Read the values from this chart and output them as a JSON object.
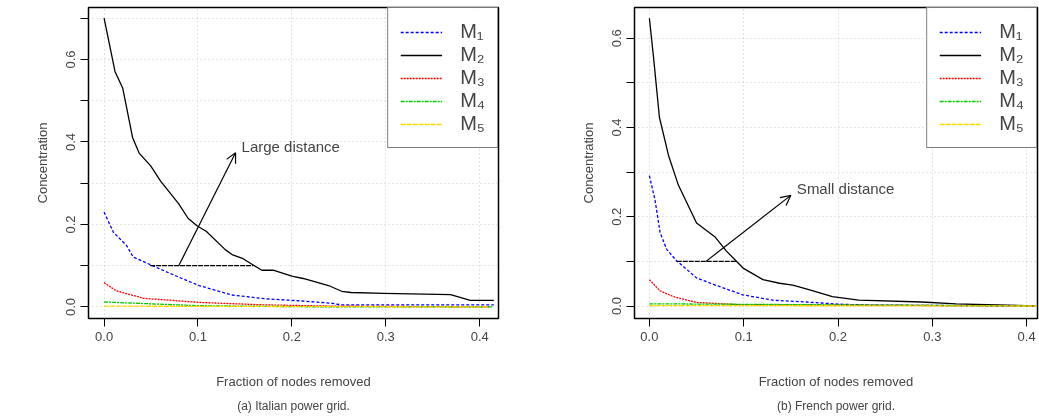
{
  "chart_data": [
    {
      "type": "line",
      "title": "(a) Italian power grid.",
      "xlabel": "Fraction of nodes removed",
      "ylabel": "Concentration",
      "xlim": [
        -0.0166,
        0.42
      ],
      "ylim": [
        -0.028,
        0.726
      ],
      "xticks": [
        {
          "value": 0,
          "label": "0.0"
        },
        0.1,
        0.2,
        0.3,
        0.4
      ],
      "yticks": [
        {
          "value": 0,
          "label": "0.0"
        },
        {
          "value": 0.1,
          "label": null
        },
        0.2,
        {
          "value": 0.3,
          "label": null
        },
        0.4,
        {
          "value": 0.5,
          "label": null
        },
        0.6,
        {
          "value": 0.7,
          "label": null
        }
      ],
      "grid": true,
      "legend": "top right",
      "annotations": [
        "Large distance"
      ],
      "series": [
        {
          "name": "M₁",
          "color": "#0000ff",
          "line_style": "dashed",
          "x": [
            0,
            0.0099,
            0.0239,
            0.031,
            0.0486,
            0.0767,
            0.101,
            0.136,
            0.171,
            0.207,
            0.242,
            0.253,
            0.415
          ],
          "values": [
            0.23,
            0.181,
            0.149,
            0.121,
            0.103,
            0.075,
            0.052,
            0.029,
            0.02,
            0.015,
            0.009,
            0.005,
            0.005
          ]
        },
        {
          "name": "M₂",
          "color": "#000000",
          "line_style": "solid",
          "x": [
            0,
            0.0116,
            0.0199,
            0.0303,
            0.0373,
            0.0496,
            0.0602,
            0.0795,
            0.0894,
            0.0989,
            0.109,
            0.129,
            0.137,
            0.148,
            0.168,
            0.18,
            0.2,
            0.212,
            0.239,
            0.253,
            0.263,
            0.298,
            0.369,
            0.39,
            0.415
          ],
          "values": [
            0.7,
            0.571,
            0.53,
            0.411,
            0.373,
            0.342,
            0.305,
            0.25,
            0.215,
            0.197,
            0.183,
            0.139,
            0.126,
            0.117,
            0.089,
            0.089,
            0.075,
            0.069,
            0.052,
            0.038,
            0.035,
            0.033,
            0.03,
            0.016,
            0.016
          ]
        },
        {
          "name": "M₃",
          "color": "#ff0000",
          "line_style": "dotted",
          "x": [
            0,
            0.013,
            0.042,
            0.101,
            0.171,
            0.242,
            0.41
          ],
          "values": [
            0.059,
            0.039,
            0.021,
            0.011,
            0.005,
            0.002,
            0
          ]
        },
        {
          "name": "M₄",
          "color": "#00cd00",
          "line_style": "dashdot",
          "x": [
            0,
            0.101,
            0.24,
            0.414
          ],
          "values": [
            0.012,
            0.003,
            0,
            0
          ]
        },
        {
          "name": "M₅",
          "color": "#ffd700",
          "line_style": "longdash",
          "x": [
            0,
            0.409
          ],
          "values": [
            0.002,
            0
          ]
        },
        {
          "color": "#000000",
          "line_style": "longdash",
          "x": [
            0.049,
            0.159
          ],
          "values": [
            0.1,
            0.1
          ]
        },
        {
          "color": "#000000",
          "line_style": "solid",
          "x": [
            0.0795,
            0.14
          ],
          "values": [
            0.1,
            0.374
          ]
        }
      ]
    },
    {
      "type": "line",
      "title": "(b) French power grid.",
      "xlabel": "Fraction of nodes removed",
      "ylabel": "Concentration",
      "xlim": [
        -0.0158,
        0.4115
      ],
      "ylim": [
        -0.028,
        0.669
      ],
      "xticks": [
        {
          "value": 0,
          "label": "0.0"
        },
        0.1,
        0.2,
        0.3,
        0.4
      ],
      "yticks": [
        {
          "value": 0,
          "label": "0.0"
        },
        {
          "value": 0.1,
          "label": null
        },
        0.2,
        {
          "value": 0.3,
          "label": null
        },
        0.4,
        {
          "value": 0.5,
          "label": null
        },
        0.6
      ],
      "grid": true,
      "legend": "top right",
      "annotations": [
        "Small distance"
      ],
      "series": [
        {
          "name": "M₁",
          "color": "#0000ff",
          "line_style": "dashed",
          "x": [
            0,
            0.006,
            0.0113,
            0.0183,
            0.029,
            0.05,
            0.071,
            0.099,
            0.131,
            0.166,
            0.201,
            0.237,
            0.411
          ],
          "values": [
            0.292,
            0.237,
            0.165,
            0.127,
            0.101,
            0.063,
            0.046,
            0.025,
            0.013,
            0.009,
            0.004,
            0.002,
            0
          ]
        },
        {
          "name": "M₂",
          "color": "#000000",
          "line_style": "solid",
          "x": [
            0,
            0.0043,
            0.0106,
            0.0202,
            0.0307,
            0.05,
            0.07,
            0.0817,
            0.0993,
            0.1204,
            0.138,
            0.152,
            0.17,
            0.194,
            0.222,
            0.289,
            0.325,
            0.411
          ],
          "values": [
            0.645,
            0.559,
            0.423,
            0.338,
            0.271,
            0.186,
            0.154,
            0.123,
            0.085,
            0.059,
            0.051,
            0.047,
            0.036,
            0.021,
            0.013,
            0.009,
            0.005,
            0
          ]
        },
        {
          "name": "M₃",
          "color": "#ff0000",
          "line_style": "dotted",
          "x": [
            0,
            0.0113,
            0.0254,
            0.05,
            0.096,
            0.411
          ],
          "values": [
            0.059,
            0.034,
            0.021,
            0.008,
            0.003,
            0
          ]
        },
        {
          "name": "M₄",
          "color": "#00cd00",
          "line_style": "dashdot",
          "x": [
            0,
            0.411
          ],
          "values": [
            0.005,
            0
          ]
        },
        {
          "name": "M₅",
          "color": "#ffd700",
          "line_style": "longdash",
          "x": [
            0,
            0.411
          ],
          "values": [
            0.001,
            0
          ]
        },
        {
          "color": "#000000",
          "line_style": "longdash",
          "x": [
            0.029,
            0.092
          ],
          "values": [
            0.1,
            0.1
          ]
        },
        {
          "color": "#000000",
          "line_style": "solid",
          "x": [
            0.06,
            0.15
          ],
          "values": [
            0.1,
            0.248
          ]
        }
      ]
    }
  ]
}
